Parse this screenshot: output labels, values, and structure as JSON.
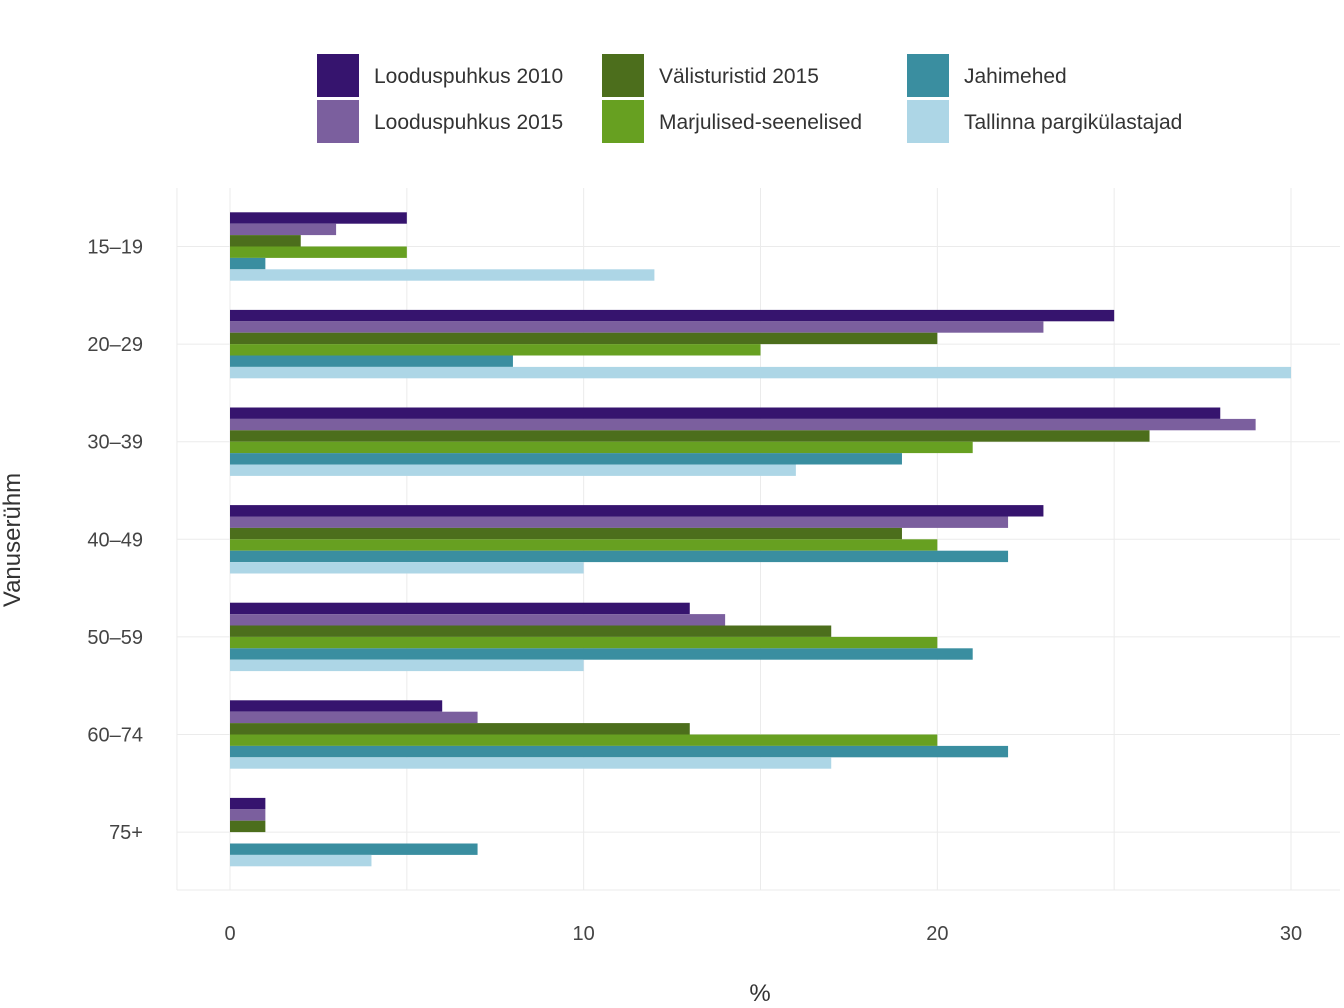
{
  "chart_data": {
    "type": "bar",
    "orientation": "horizontal",
    "categories": [
      "15–19",
      "20–29",
      "30–39",
      "40–49",
      "50–59",
      "60–74",
      "75+"
    ],
    "series": [
      {
        "name": "Looduspuhkus 2010",
        "color": "#36146e",
        "values": [
          5,
          25,
          28,
          23,
          13,
          6,
          1
        ]
      },
      {
        "name": "Looduspuhkus 2015",
        "color": "#7b5f9e",
        "values": [
          3,
          23,
          29,
          22,
          14,
          7,
          1
        ]
      },
      {
        "name": "Välisturistid 2015",
        "color": "#4c6e1c",
        "values": [
          2,
          20,
          26,
          19,
          17,
          13,
          1
        ]
      },
      {
        "name": "Marjulised-seenelised",
        "color": "#67a021",
        "values": [
          5,
          15,
          21,
          20,
          20,
          20,
          0
        ]
      },
      {
        "name": "Jahimehed",
        "color": "#3a8ea0",
        "values": [
          1,
          8,
          19,
          22,
          21,
          22,
          7
        ]
      },
      {
        "name": "Tallinna pargikülastajad",
        "color": "#add6e6",
        "values": [
          12,
          30,
          16,
          10,
          10,
          17,
          4
        ]
      }
    ],
    "xlabel": "%",
    "ylabel": "Vanuserühm",
    "xlim": [
      0,
      30
    ],
    "xticks": [
      0,
      10,
      20,
      30
    ],
    "grid": true,
    "legend_position": "top"
  }
}
